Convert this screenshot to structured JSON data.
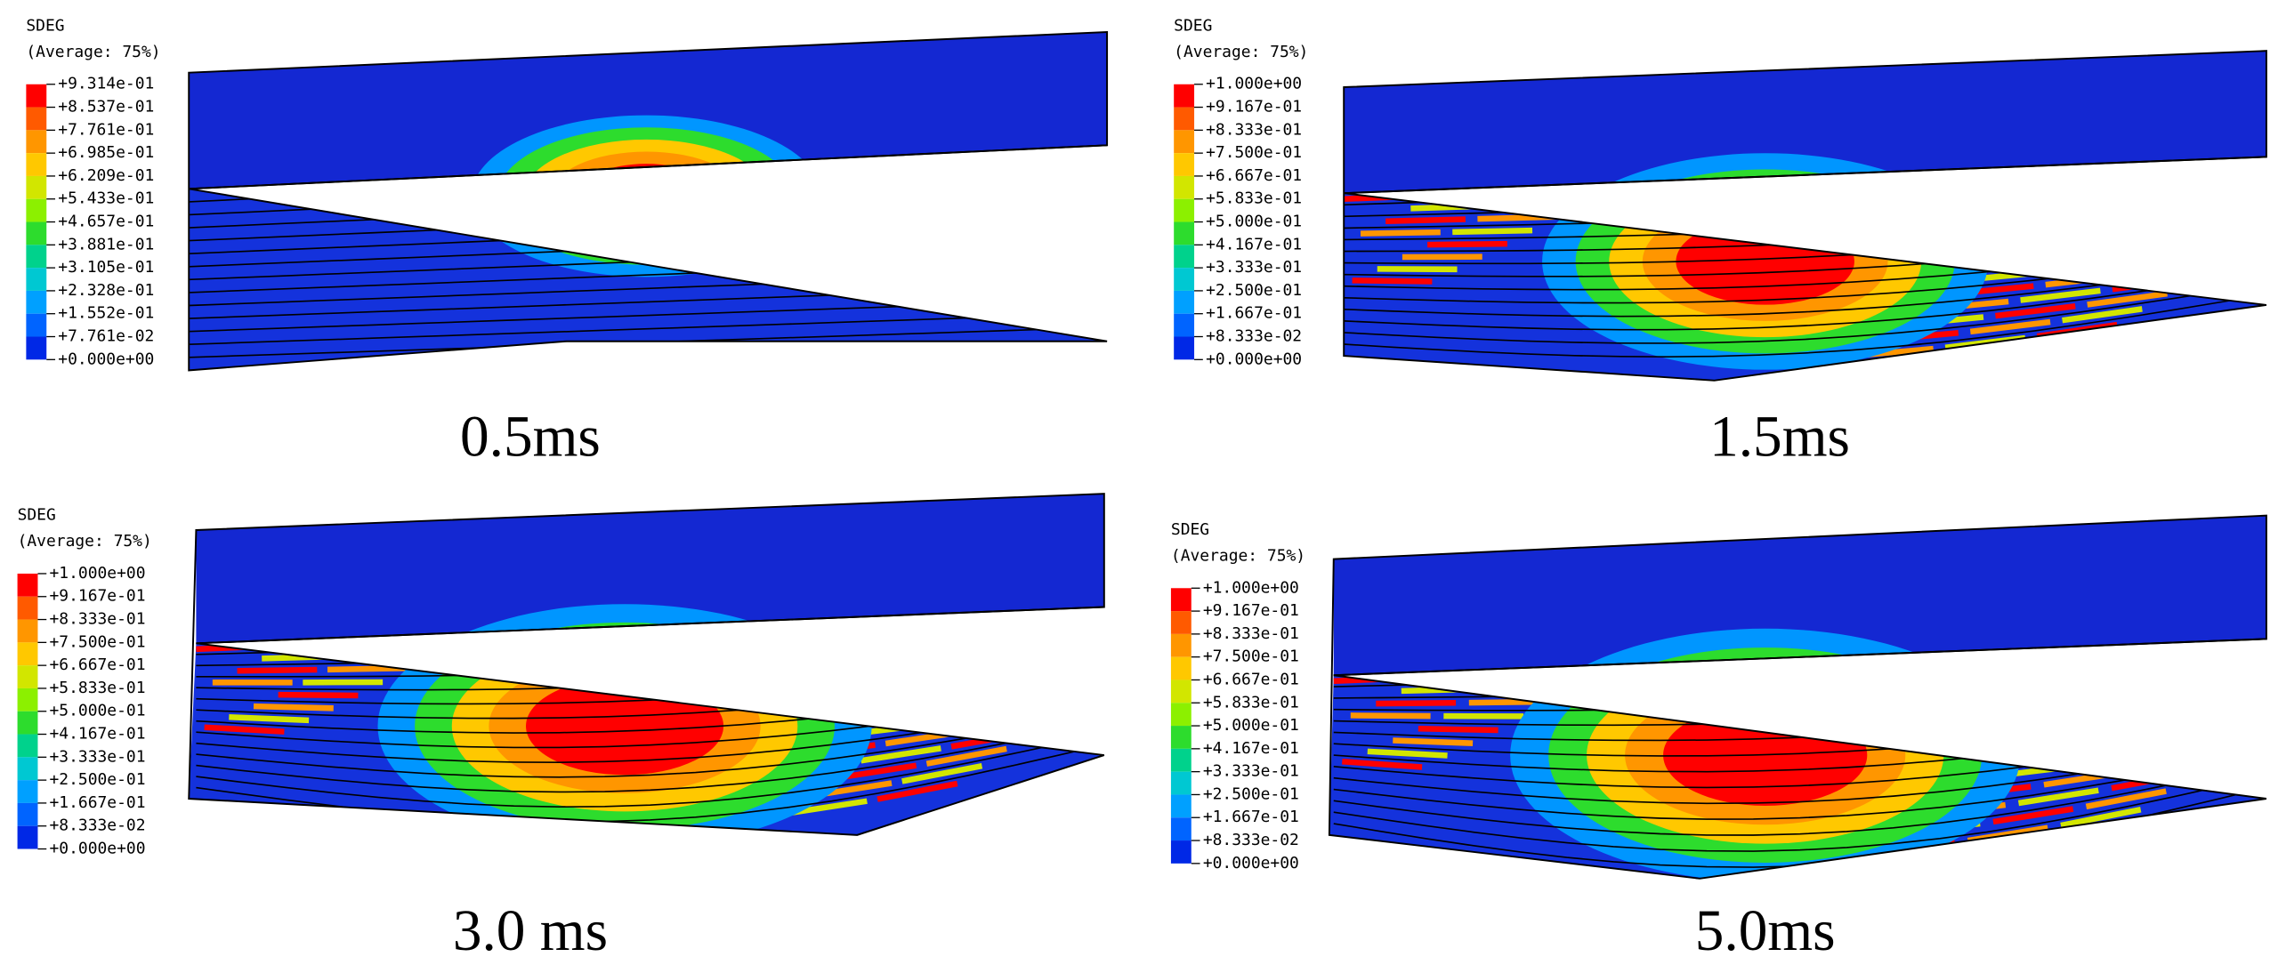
{
  "panels": [
    {
      "legend_title": "SDEG",
      "legend_subtitle": "(Average: 75%)",
      "legend_labels": [
        "+9.314e-01",
        "+8.537e-01",
        "+7.761e-01",
        "+6.985e-01",
        "+6.209e-01",
        "+5.433e-01",
        "+4.657e-01",
        "+3.881e-01",
        "+3.105e-01",
        "+2.328e-01",
        "+1.552e-01",
        "+7.761e-02",
        "+0.000e+00"
      ],
      "caption": "0.5ms"
    },
    {
      "legend_title": "SDEG",
      "legend_subtitle": "(Average: 75%)",
      "legend_labels": [
        "+1.000e+00",
        "+9.167e-01",
        "+8.333e-01",
        "+7.500e-01",
        "+6.667e-01",
        "+5.833e-01",
        "+5.000e-01",
        "+4.167e-01",
        "+3.333e-01",
        "+2.500e-01",
        "+1.667e-01",
        "+8.333e-02",
        "+0.000e+00"
      ],
      "caption": "1.5ms"
    },
    {
      "legend_title": "SDEG",
      "legend_subtitle": "(Average: 75%)",
      "legend_labels": [
        "+1.000e+00",
        "+9.167e-01",
        "+8.333e-01",
        "+7.500e-01",
        "+6.667e-01",
        "+5.833e-01",
        "+5.000e-01",
        "+4.167e-01",
        "+3.333e-01",
        "+2.500e-01",
        "+1.667e-01",
        "+8.333e-02",
        "+0.000e+00"
      ],
      "caption": "3.0 ms"
    },
    {
      "legend_title": "SDEG",
      "legend_subtitle": "(Average: 75%)",
      "legend_labels": [
        "+1.000e+00",
        "+9.167e-01",
        "+8.333e-01",
        "+7.500e-01",
        "+6.667e-01",
        "+5.833e-01",
        "+5.000e-01",
        "+4.167e-01",
        "+3.333e-01",
        "+2.500e-01",
        "+1.667e-01",
        "+8.333e-02",
        "+0.000e+00"
      ],
      "caption": "5.0ms"
    }
  ]
}
